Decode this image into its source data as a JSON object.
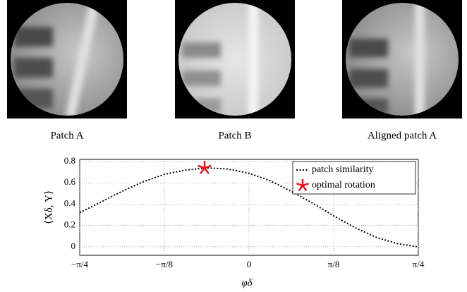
{
  "captions": [
    "Patch A",
    "Patch B",
    "Aligned patch A"
  ],
  "chart_data": {
    "type": "line",
    "xlabel": "φδ",
    "ylabel": "⟨Xδ, Y⟩",
    "xlim": [
      -0.7854,
      0.7854
    ],
    "ylim": [
      -0.08,
      0.82
    ],
    "xticks": [
      {
        "value": -0.7854,
        "label": "−π/4"
      },
      {
        "value": -0.3927,
        "label": "−π/8"
      },
      0,
      {
        "value": 0.3927,
        "label": "π/8"
      },
      {
        "value": 0.7854,
        "label": "π/4"
      }
    ],
    "yticks": [
      0,
      0.2,
      0.4,
      0.6,
      0.8
    ],
    "grid": true,
    "legend": "upper right",
    "series": [
      {
        "name": "patch similarity",
        "color": "#000000",
        "style": "dotted",
        "x": [
          -0.785,
          -0.687,
          -0.589,
          -0.491,
          -0.393,
          -0.295,
          -0.196,
          -0.098,
          0,
          0.098,
          0.196,
          0.295,
          0.393,
          0.491,
          0.589,
          0.687,
          0.785
        ],
        "values": [
          0.32,
          0.42,
          0.52,
          0.61,
          0.68,
          0.72,
          0.74,
          0.73,
          0.69,
          0.62,
          0.52,
          0.41,
          0.29,
          0.18,
          0.09,
          0.03,
          0.0
        ]
      },
      {
        "name": "optimal rotation",
        "color": "#e8141c",
        "style": "star",
        "x": [
          -0.206
        ],
        "values": [
          0.74
        ]
      }
    ]
  }
}
